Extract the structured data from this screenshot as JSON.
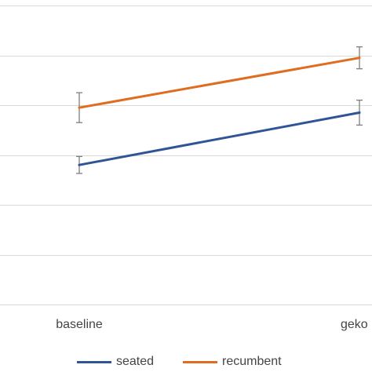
{
  "chart_data": {
    "type": "line",
    "title": "",
    "xlabel": "",
    "ylabel": "",
    "categories": [
      "baseline",
      "geko"
    ],
    "ylim": [
      0,
      6.2
    ],
    "y_gridlines": [
      0,
      1,
      2,
      3,
      4,
      5,
      6
    ],
    "grid": true,
    "legend_position": "bottom",
    "series": [
      {
        "name": "seated",
        "color": "#2f5597",
        "values": [
          2.8,
          3.85
        ],
        "error": [
          0.17,
          0.25
        ]
      },
      {
        "name": "recumbent",
        "color": "#e06c1f",
        "values": [
          3.95,
          4.95
        ],
        "error": [
          0.3,
          0.22
        ]
      }
    ]
  }
}
